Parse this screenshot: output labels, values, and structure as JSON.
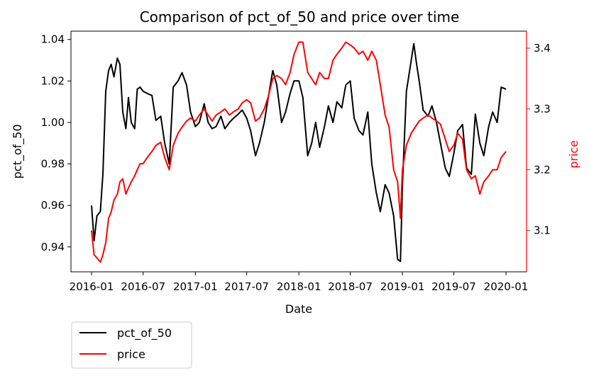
{
  "chart_data": {
    "type": "line",
    "title": "Comparison of pct_of_50 and price over time",
    "xlabel": "Date",
    "ylabel_left": "pct_of_50",
    "ylabel_right": "price",
    "x_ticks": [
      "2016-01",
      "2016-07",
      "2017-01",
      "2017-07",
      "2018-01",
      "2018-07",
      "2019-01",
      "2019-07",
      "2020-01"
    ],
    "y_left_ticks": [
      "0.94",
      "0.96",
      "0.98",
      "1.00",
      "1.02",
      "1.04"
    ],
    "y_right_ticks": [
      "3.1",
      "3.2",
      "3.3",
      "3.4"
    ],
    "ylim_left": [
      0.928,
      1.044
    ],
    "ylim_right": [
      3.032,
      3.428
    ],
    "legend_position": "below-left",
    "series": [
      {
        "name": "pct_of_50",
        "axis": "left",
        "color": "#000000",
        "points": [
          [
            "2016-01",
            0.96
          ],
          [
            "2016-01-10",
            0.943
          ],
          [
            "2016-01-20",
            0.955
          ],
          [
            "2016-02",
            0.957
          ],
          [
            "2016-02-10",
            0.975
          ],
          [
            "2016-02-20",
            1.015
          ],
          [
            "2016-03",
            1.025
          ],
          [
            "2016-03-10",
            1.028
          ],
          [
            "2016-03-20",
            1.022
          ],
          [
            "2016-04",
            1.031
          ],
          [
            "2016-04-10",
            1.028
          ],
          [
            "2016-04-20",
            1.005
          ],
          [
            "2016-05",
            0.997
          ],
          [
            "2016-05-10",
            1.012
          ],
          [
            "2016-05-20",
            1.0
          ],
          [
            "2016-06",
            0.997
          ],
          [
            "2016-06-10",
            1.016
          ],
          [
            "2016-06-20",
            1.017
          ],
          [
            "2016-07",
            1.015
          ],
          [
            "2016-07-15",
            1.014
          ],
          [
            "2016-08",
            1.013
          ],
          [
            "2016-08-15",
            1.001
          ],
          [
            "2016-09",
            1.003
          ],
          [
            "2016-09-15",
            0.99
          ],
          [
            "2016-10",
            0.98
          ],
          [
            "2016-10-15",
            1.017
          ],
          [
            "2016-11",
            1.02
          ],
          [
            "2016-11-15",
            1.024
          ],
          [
            "2016-12",
            1.018
          ],
          [
            "2016-12-15",
            1.005
          ],
          [
            "2017-01",
            0.998
          ],
          [
            "2017-01-15",
            1.0
          ],
          [
            "2017-02",
            1.009
          ],
          [
            "2017-02-15",
            1.0
          ],
          [
            "2017-03",
            0.997
          ],
          [
            "2017-03-15",
            0.998
          ],
          [
            "2017-04",
            1.003
          ],
          [
            "2017-04-15",
            0.997
          ],
          [
            "2017-05",
            1.0
          ],
          [
            "2017-05-15",
            1.002
          ],
          [
            "2017-06",
            1.004
          ],
          [
            "2017-06-15",
            1.006
          ],
          [
            "2017-07",
            1.002
          ],
          [
            "2017-07-15",
            0.996
          ],
          [
            "2017-08",
            0.984
          ],
          [
            "2017-08-15",
            0.99
          ],
          [
            "2017-09",
            1.0
          ],
          [
            "2017-09-15",
            1.012
          ],
          [
            "2017-10",
            1.025
          ],
          [
            "2017-10-15",
            1.018
          ],
          [
            "2017-11",
            1.0
          ],
          [
            "2017-11-15",
            1.005
          ],
          [
            "2017-12",
            1.014
          ],
          [
            "2017-12-15",
            1.02
          ],
          [
            "2018-01",
            1.02
          ],
          [
            "2018-01-15",
            1.012
          ],
          [
            "2018-02",
            0.984
          ],
          [
            "2018-02-15",
            0.99
          ],
          [
            "2018-03",
            1.0
          ],
          [
            "2018-03-15",
            0.988
          ],
          [
            "2018-04",
            0.998
          ],
          [
            "2018-04-15",
            1.008
          ],
          [
            "2018-05",
            1.0
          ],
          [
            "2018-05-15",
            1.01
          ],
          [
            "2018-06",
            1.007
          ],
          [
            "2018-06-15",
            1.018
          ],
          [
            "2018-07",
            1.02
          ],
          [
            "2018-07-15",
            1.002
          ],
          [
            "2018-08",
            0.996
          ],
          [
            "2018-08-15",
            0.994
          ],
          [
            "2018-09",
            1.005
          ],
          [
            "2018-09-15",
            0.98
          ],
          [
            "2018-10",
            0.966
          ],
          [
            "2018-10-15",
            0.957
          ],
          [
            "2018-11",
            0.97
          ],
          [
            "2018-11-15",
            0.966
          ],
          [
            "2018-12",
            0.955
          ],
          [
            "2018-12-15",
            0.934
          ],
          [
            "2018-12-25",
            0.933
          ],
          [
            "2019-01",
            0.97
          ],
          [
            "2019-01-15",
            1.015
          ],
          [
            "2019-02",
            1.03
          ],
          [
            "2019-02-10",
            1.038
          ],
          [
            "2019-02-20",
            1.028
          ],
          [
            "2019-03",
            1.02
          ],
          [
            "2019-03-15",
            1.006
          ],
          [
            "2019-04",
            1.003
          ],
          [
            "2019-04-15",
            1.008
          ],
          [
            "2019-05",
            1.0
          ],
          [
            "2019-05-15",
            0.99
          ],
          [
            "2019-06",
            0.978
          ],
          [
            "2019-06-15",
            0.974
          ],
          [
            "2019-07",
            0.985
          ],
          [
            "2019-07-15",
            0.996
          ],
          [
            "2019-08",
            0.999
          ],
          [
            "2019-08-15",
            0.978
          ],
          [
            "2019-09",
            0.975
          ],
          [
            "2019-09-15",
            1.004
          ],
          [
            "2019-10",
            0.99
          ],
          [
            "2019-10-15",
            0.984
          ],
          [
            "2019-11",
            0.998
          ],
          [
            "2019-11-15",
            1.005
          ],
          [
            "2019-12",
            1.0
          ],
          [
            "2019-12-15",
            1.017
          ],
          [
            "2020-01",
            1.016
          ]
        ]
      },
      {
        "name": "price",
        "axis": "right",
        "color": "#ff0000",
        "points": [
          [
            "2016-01",
            3.1
          ],
          [
            "2016-01-10",
            3.06
          ],
          [
            "2016-01-20",
            3.055
          ],
          [
            "2016-02",
            3.048
          ],
          [
            "2016-02-10",
            3.06
          ],
          [
            "2016-02-20",
            3.08
          ],
          [
            "2016-03",
            3.12
          ],
          [
            "2016-03-10",
            3.13
          ],
          [
            "2016-03-20",
            3.15
          ],
          [
            "2016-04",
            3.16
          ],
          [
            "2016-04-10",
            3.18
          ],
          [
            "2016-04-20",
            3.185
          ],
          [
            "2016-05",
            3.16
          ],
          [
            "2016-05-10",
            3.17
          ],
          [
            "2016-05-20",
            3.18
          ],
          [
            "2016-06",
            3.19
          ],
          [
            "2016-06-10",
            3.2
          ],
          [
            "2016-06-20",
            3.21
          ],
          [
            "2016-07",
            3.21
          ],
          [
            "2016-07-15",
            3.22
          ],
          [
            "2016-08",
            3.23
          ],
          [
            "2016-08-15",
            3.24
          ],
          [
            "2016-09",
            3.245
          ],
          [
            "2016-09-15",
            3.22
          ],
          [
            "2016-10",
            3.2
          ],
          [
            "2016-10-15",
            3.24
          ],
          [
            "2016-11",
            3.26
          ],
          [
            "2016-11-15",
            3.27
          ],
          [
            "2016-12",
            3.28
          ],
          [
            "2016-12-15",
            3.285
          ],
          [
            "2017-01",
            3.28
          ],
          [
            "2017-01-15",
            3.29
          ],
          [
            "2017-02",
            3.3
          ],
          [
            "2017-02-15",
            3.29
          ],
          [
            "2017-03",
            3.28
          ],
          [
            "2017-03-15",
            3.29
          ],
          [
            "2017-04",
            3.295
          ],
          [
            "2017-04-15",
            3.3
          ],
          [
            "2017-05",
            3.29
          ],
          [
            "2017-05-15",
            3.295
          ],
          [
            "2017-06",
            3.3
          ],
          [
            "2017-06-15",
            3.31
          ],
          [
            "2017-07",
            3.315
          ],
          [
            "2017-07-15",
            3.31
          ],
          [
            "2017-08",
            3.28
          ],
          [
            "2017-08-15",
            3.285
          ],
          [
            "2017-09",
            3.3
          ],
          [
            "2017-09-15",
            3.32
          ],
          [
            "2017-10",
            3.35
          ],
          [
            "2017-10-15",
            3.355
          ],
          [
            "2017-11",
            3.35
          ],
          [
            "2017-11-15",
            3.34
          ],
          [
            "2017-12",
            3.36
          ],
          [
            "2017-12-15",
            3.39
          ],
          [
            "2018-01",
            3.41
          ],
          [
            "2018-01-15",
            3.41
          ],
          [
            "2018-02",
            3.36
          ],
          [
            "2018-02-15",
            3.35
          ],
          [
            "2018-03",
            3.34
          ],
          [
            "2018-03-15",
            3.36
          ],
          [
            "2018-04",
            3.35
          ],
          [
            "2018-04-15",
            3.35
          ],
          [
            "2018-05",
            3.38
          ],
          [
            "2018-05-15",
            3.39
          ],
          [
            "2018-06",
            3.4
          ],
          [
            "2018-06-15",
            3.41
          ],
          [
            "2018-07",
            3.405
          ],
          [
            "2018-07-15",
            3.4
          ],
          [
            "2018-08",
            3.39
          ],
          [
            "2018-08-15",
            3.395
          ],
          [
            "2018-09",
            3.38
          ],
          [
            "2018-09-15",
            3.395
          ],
          [
            "2018-10",
            3.38
          ],
          [
            "2018-10-15",
            3.34
          ],
          [
            "2018-11",
            3.29
          ],
          [
            "2018-11-15",
            3.27
          ],
          [
            "2018-12",
            3.2
          ],
          [
            "2018-12-15",
            3.18
          ],
          [
            "2018-12-25",
            3.12
          ],
          [
            "2019-01",
            3.2
          ],
          [
            "2019-01-15",
            3.24
          ],
          [
            "2019-02",
            3.26
          ],
          [
            "2019-02-15",
            3.27
          ],
          [
            "2019-03",
            3.28
          ],
          [
            "2019-03-15",
            3.285
          ],
          [
            "2019-04",
            3.29
          ],
          [
            "2019-04-15",
            3.285
          ],
          [
            "2019-05",
            3.28
          ],
          [
            "2019-05-15",
            3.275
          ],
          [
            "2019-06",
            3.25
          ],
          [
            "2019-06-15",
            3.23
          ],
          [
            "2019-07",
            3.24
          ],
          [
            "2019-07-15",
            3.26
          ],
          [
            "2019-08",
            3.25
          ],
          [
            "2019-08-15",
            3.2
          ],
          [
            "2019-09",
            3.185
          ],
          [
            "2019-09-15",
            3.19
          ],
          [
            "2019-10",
            3.16
          ],
          [
            "2019-10-15",
            3.18
          ],
          [
            "2019-11",
            3.19
          ],
          [
            "2019-11-15",
            3.2
          ],
          [
            "2019-12",
            3.2
          ],
          [
            "2019-12-15",
            3.22
          ],
          [
            "2020-01",
            3.23
          ]
        ]
      }
    ]
  }
}
